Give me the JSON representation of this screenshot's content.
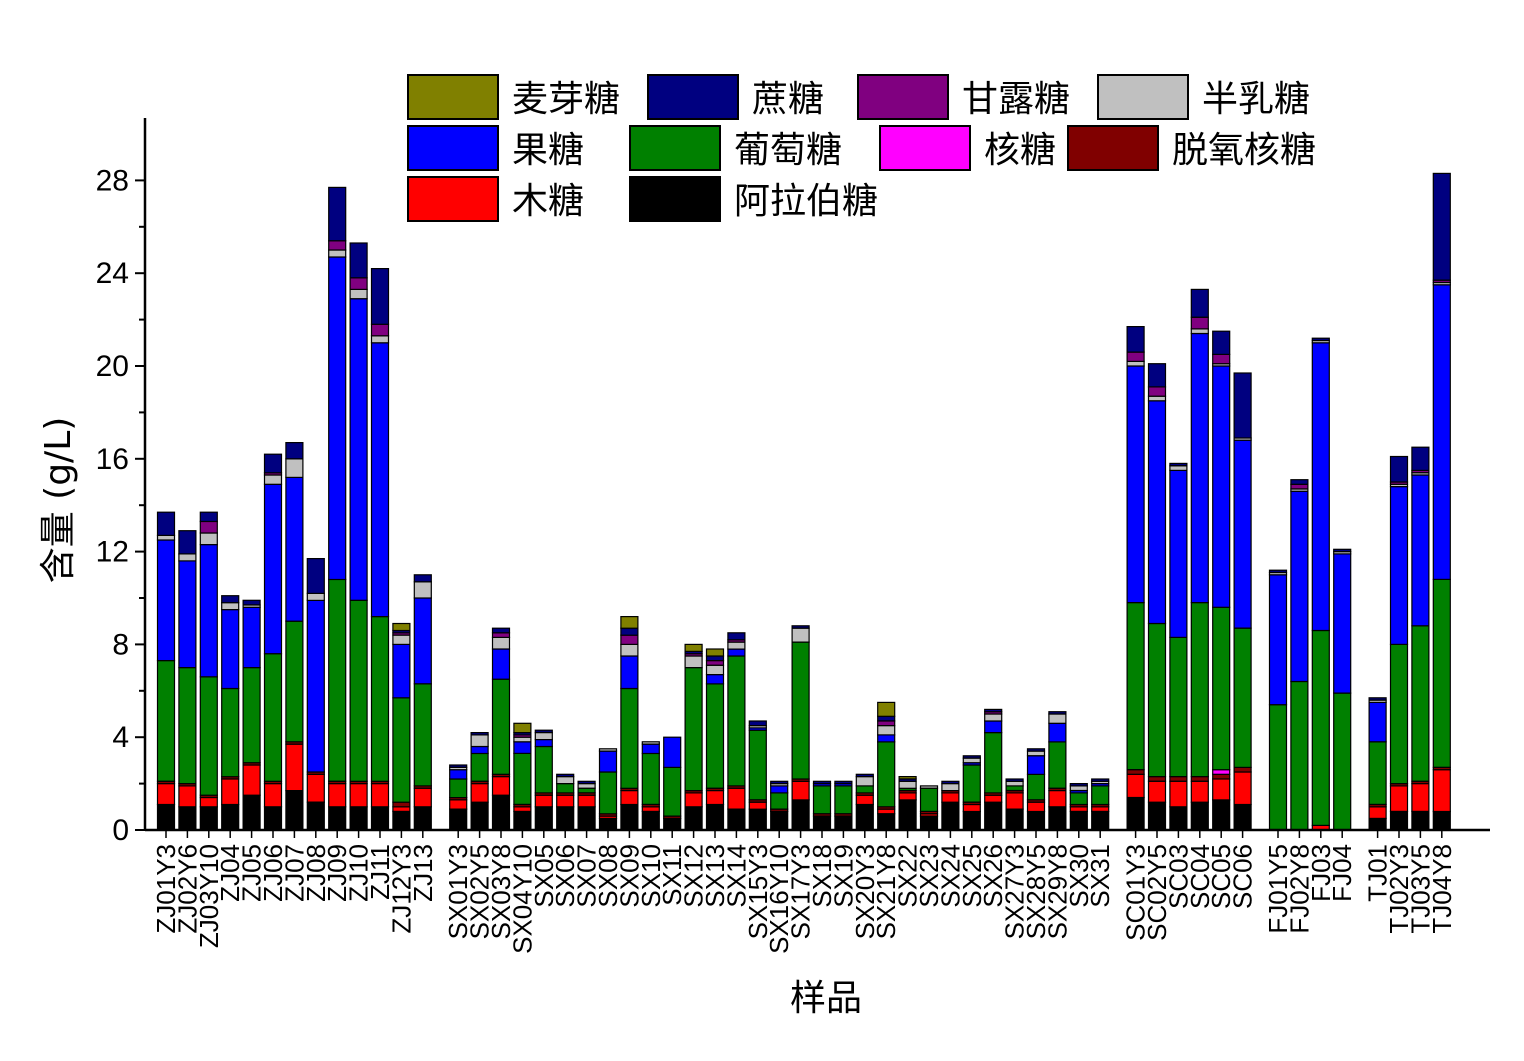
{
  "chart_data": {
    "type": "bar",
    "stacked": true,
    "xlabel": "样品",
    "ylabel": "含量 (g/L)",
    "ylim": [
      0,
      30
    ],
    "yticks": [
      0,
      4,
      8,
      12,
      16,
      20,
      24,
      28
    ],
    "legend_position": "top",
    "categories": [
      "ZJ01Y3",
      "ZJ02Y6",
      "ZJ03Y10",
      "ZJ04",
      "ZJ05",
      "ZJ06",
      "ZJ07",
      "ZJ08",
      "ZJ09",
      "ZJ10",
      "ZJ11",
      "ZJ12Y3",
      "ZJ13",
      "SX01Y3",
      "SX02Y5",
      "SX03Y8",
      "SX04Y10",
      "SX05",
      "SX06",
      "SX07",
      "SX08",
      "SX09",
      "SX10",
      "SX11",
      "SX12",
      "SX13",
      "SX14",
      "SX15Y3",
      "SX16Y10",
      "SX17Y3",
      "SX18",
      "SX19",
      "SX20Y3",
      "SX21Y8",
      "SX22",
      "SX23",
      "SX24",
      "SX25",
      "SX26",
      "SX27Y3",
      "SX28Y5",
      "SX29Y8",
      "SX30",
      "SX31",
      "SC01Y3",
      "SC02Y5",
      "SC03",
      "SC04",
      "SC05",
      "SC06",
      "FJ01Y5",
      "FJ02Y8",
      "FJ03",
      "FJ04",
      "TJ01",
      "TJ02Y3",
      "TJ03Y5",
      "TJ04Y8"
    ],
    "groups": [
      13,
      31,
      6,
      4,
      4
    ],
    "series": [
      {
        "name": "阿拉伯糖",
        "color": "#000000",
        "values": [
          1.1,
          1.0,
          1.0,
          1.1,
          1.5,
          1.0,
          1.7,
          1.2,
          1.0,
          1.0,
          1.0,
          0.8,
          1.0,
          0.9,
          1.2,
          1.5,
          0.8,
          1.0,
          1.0,
          1.0,
          0.5,
          1.1,
          0.8,
          0.5,
          1.0,
          1.1,
          0.9,
          0.9,
          0.8,
          1.3,
          0.6,
          0.6,
          1.1,
          0.7,
          1.3,
          0.6,
          1.2,
          0.8,
          1.2,
          0.9,
          0.8,
          1.0,
          0.8,
          0.8,
          1.4,
          1.2,
          1.0,
          1.2,
          1.3,
          1.1,
          0.0,
          0.0,
          0.0,
          0.0,
          0.5,
          0.8,
          0.8,
          0.8
        ]
      },
      {
        "name": "木糖",
        "color": "#ff0000",
        "values": [
          0.9,
          0.9,
          0.4,
          1.1,
          1.3,
          1.0,
          2.0,
          1.2,
          1.0,
          1.0,
          1.0,
          0.2,
          0.8,
          0.4,
          0.8,
          0.8,
          0.2,
          0.5,
          0.5,
          0.5,
          0.1,
          0.6,
          0.2,
          0.0,
          0.6,
          0.6,
          0.9,
          0.3,
          0.0,
          0.8,
          0.0,
          0.0,
          0.4,
          0.2,
          0.3,
          0.1,
          0.4,
          0.3,
          0.3,
          0.7,
          0.4,
          0.7,
          0.2,
          0.2,
          1.0,
          0.9,
          1.1,
          0.9,
          0.9,
          1.4,
          0.0,
          0.0,
          0.2,
          0.0,
          0.5,
          1.1,
          1.2,
          1.8
        ]
      },
      {
        "name": "脱氧核糖",
        "color": "#800000",
        "values": [
          0.1,
          0.1,
          0.1,
          0.1,
          0.1,
          0.1,
          0.1,
          0.1,
          0.1,
          0.1,
          0.1,
          0.2,
          0.1,
          0.1,
          0.1,
          0.1,
          0.1,
          0.1,
          0.1,
          0.1,
          0.1,
          0.1,
          0.1,
          0.1,
          0.1,
          0.1,
          0.1,
          0.1,
          0.1,
          0.1,
          0.1,
          0.1,
          0.1,
          0.1,
          0.1,
          0.1,
          0.1,
          0.1,
          0.1,
          0.1,
          0.1,
          0.1,
          0.1,
          0.1,
          0.2,
          0.2,
          0.2,
          0.2,
          0.2,
          0.2,
          0.0,
          0.0,
          0.0,
          0.0,
          0.1,
          0.1,
          0.1,
          0.1
        ]
      },
      {
        "name": "核糖",
        "color": "#ff00ff",
        "values": [
          0.0,
          0.0,
          0.0,
          0.0,
          0.0,
          0.0,
          0.0,
          0.0,
          0.0,
          0.0,
          0.0,
          0.0,
          0.0,
          0.0,
          0.0,
          0.0,
          0.0,
          0.0,
          0.0,
          0.0,
          0.0,
          0.0,
          0.0,
          0.0,
          0.0,
          0.0,
          0.0,
          0.0,
          0.0,
          0.0,
          0.0,
          0.0,
          0.0,
          0.0,
          0.0,
          0.0,
          0.0,
          0.0,
          0.0,
          0.0,
          0.0,
          0.0,
          0.0,
          0.0,
          0.0,
          0.0,
          0.0,
          0.0,
          0.2,
          0.0,
          0.0,
          0.0,
          0.0,
          0.0,
          0.0,
          0.0,
          0.0,
          0.0
        ]
      },
      {
        "name": "葡萄糖",
        "color": "#008000",
        "values": [
          5.2,
          5.0,
          5.1,
          3.8,
          4.1,
          5.5,
          5.2,
          0.0,
          8.7,
          7.8,
          7.1,
          4.5,
          4.4,
          0.8,
          1.2,
          4.1,
          2.2,
          2.0,
          0.4,
          0.2,
          1.8,
          4.3,
          2.2,
          2.1,
          5.3,
          4.5,
          5.6,
          3.0,
          0.7,
          5.9,
          1.2,
          1.2,
          0.3,
          2.8,
          0.1,
          1.0,
          0.0,
          1.6,
          2.6,
          0.2,
          1.1,
          2.0,
          0.5,
          0.8,
          7.2,
          6.6,
          6.0,
          7.5,
          7.0,
          6.0,
          5.4,
          6.4,
          8.4,
          5.9,
          2.7,
          6.0,
          6.7,
          8.1
        ]
      },
      {
        "name": "果糖",
        "color": "#0000ff",
        "values": [
          5.2,
          4.6,
          5.7,
          3.4,
          2.6,
          7.3,
          6.2,
          7.4,
          13.9,
          13.0,
          11.8,
          2.3,
          3.7,
          0.4,
          0.3,
          1.3,
          0.5,
          0.3,
          0.0,
          0.0,
          0.9,
          1.4,
          0.4,
          1.3,
          0.0,
          0.4,
          0.3,
          0.1,
          0.3,
          0.0,
          0.1,
          0.1,
          0.0,
          0.3,
          0.0,
          0.0,
          0.0,
          0.1,
          0.5,
          0.0,
          0.8,
          0.8,
          0.1,
          0.1,
          10.2,
          9.6,
          7.2,
          11.6,
          10.4,
          8.1,
          5.6,
          8.2,
          12.4,
          6.0,
          1.7,
          6.8,
          6.5,
          12.7
        ]
      },
      {
        "name": "半乳糖",
        "color": "#c0c0c0",
        "values": [
          0.2,
          0.3,
          0.5,
          0.3,
          0.1,
          0.4,
          0.8,
          0.3,
          0.3,
          0.4,
          0.3,
          0.4,
          0.7,
          0.1,
          0.5,
          0.5,
          0.2,
          0.3,
          0.3,
          0.2,
          0.1,
          0.5,
          0.1,
          0.0,
          0.5,
          0.4,
          0.3,
          0.1,
          0.1,
          0.6,
          0.0,
          0.0,
          0.4,
          0.4,
          0.3,
          0.1,
          0.3,
          0.2,
          0.3,
          0.2,
          0.2,
          0.4,
          0.2,
          0.1,
          0.2,
          0.2,
          0.2,
          0.2,
          0.1,
          0.1,
          0.1,
          0.1,
          0.1,
          0.1,
          0.1,
          0.1,
          0.1,
          0.1
        ]
      },
      {
        "name": "甘露糖",
        "color": "#800080",
        "values": [
          0.0,
          0.0,
          0.5,
          0.0,
          0.0,
          0.1,
          0.0,
          0.0,
          0.4,
          0.5,
          0.5,
          0.1,
          0.0,
          0.0,
          0.0,
          0.2,
          0.1,
          0.0,
          0.0,
          0.0,
          0.0,
          0.4,
          0.0,
          0.0,
          0.1,
          0.2,
          0.1,
          0.0,
          0.0,
          0.0,
          0.0,
          0.0,
          0.0,
          0.2,
          0.0,
          0.0,
          0.0,
          0.0,
          0.1,
          0.0,
          0.0,
          0.0,
          0.0,
          0.0,
          0.4,
          0.4,
          0.0,
          0.5,
          0.4,
          0.0,
          0.0,
          0.2,
          0.0,
          0.0,
          0.0,
          0.1,
          0.1,
          0.1
        ]
      },
      {
        "name": "蔗糖",
        "color": "#000080",
        "values": [
          1.0,
          1.0,
          0.4,
          0.3,
          0.2,
          0.8,
          0.7,
          1.5,
          2.3,
          1.5,
          2.4,
          0.1,
          0.3,
          0.1,
          0.1,
          0.2,
          0.1,
          0.1,
          0.1,
          0.1,
          0.0,
          0.3,
          0.0,
          0.0,
          0.1,
          0.2,
          0.3,
          0.2,
          0.1,
          0.1,
          0.1,
          0.1,
          0.1,
          0.2,
          0.1,
          0.0,
          0.1,
          0.1,
          0.1,
          0.1,
          0.1,
          0.1,
          0.1,
          0.1,
          1.1,
          1.0,
          0.1,
          1.2,
          1.0,
          2.8,
          0.1,
          0.2,
          0.1,
          0.1,
          0.1,
          1.1,
          1.0,
          4.6
        ]
      },
      {
        "name": "麦芽糖",
        "color": "#808000",
        "values": [
          0.0,
          0.0,
          0.0,
          0.0,
          0.0,
          0.0,
          0.0,
          0.0,
          0.0,
          0.0,
          0.0,
          0.3,
          0.0,
          0.0,
          0.0,
          0.0,
          0.4,
          0.0,
          0.0,
          0.0,
          0.0,
          0.5,
          0.0,
          0.0,
          0.3,
          0.3,
          0.0,
          0.0,
          0.0,
          0.0,
          0.0,
          0.0,
          0.0,
          0.6,
          0.1,
          0.0,
          0.0,
          0.0,
          0.0,
          0.0,
          0.0,
          0.0,
          0.0,
          0.0,
          0.0,
          0.0,
          0.0,
          0.0,
          0.0,
          0.0,
          0.0,
          0.0,
          0.0,
          0.0,
          0.0,
          0.0,
          0.0,
          0.0
        ]
      }
    ],
    "legend": [
      {
        "name": "麦芽糖",
        "color": "#808000"
      },
      {
        "name": "蔗糖",
        "color": "#000080"
      },
      {
        "name": "甘露糖",
        "color": "#800080"
      },
      {
        "name": "半乳糖",
        "color": "#c0c0c0"
      },
      {
        "name": "果糖",
        "color": "#0000ff"
      },
      {
        "name": "葡萄糖",
        "color": "#008000"
      },
      {
        "name": "核糖",
        "color": "#ff00ff"
      },
      {
        "name": "脱氧核糖",
        "color": "#800000"
      },
      {
        "name": "木糖",
        "color": "#ff0000"
      },
      {
        "name": "阿拉伯糖",
        "color": "#000000"
      }
    ]
  }
}
